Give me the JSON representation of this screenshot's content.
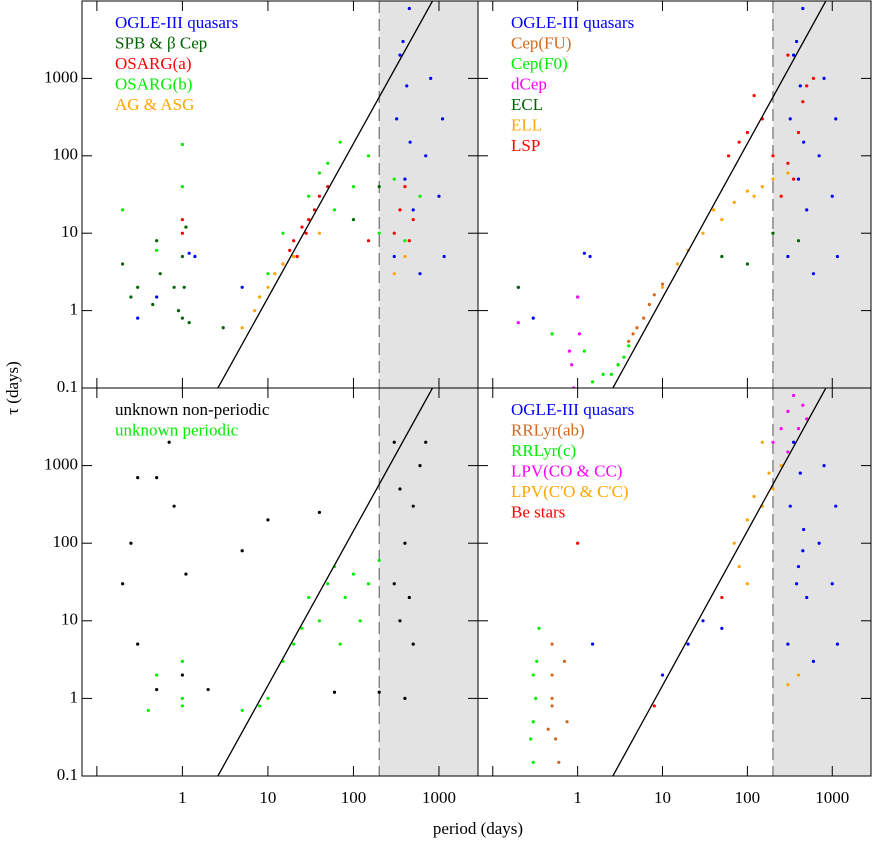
{
  "chart_data": [
    {
      "type": "scatter",
      "ylabel": "τ (days)",
      "xscale": "log",
      "yscale": "log",
      "xlim": [
        0.067,
        2860
      ],
      "ylim": [
        0.1,
        10000
      ],
      "xticks": [
        0.1,
        1,
        10,
        100,
        1000
      ],
      "yticks": [
        0.1,
        1,
        10,
        100,
        1000
      ],
      "shade_from": 200,
      "ref_line": {
        "x": [
          2.6,
          840
        ],
        "y": [
          0.1,
          10000
        ]
      },
      "series": [
        {
          "name": "OGLE-III quasars",
          "color": "#0000ff",
          "x": [
            300,
            320,
            350,
            400,
            420,
            450,
            500,
            600,
            700,
            800,
            1000,
            1100,
            1150,
            0.5,
            0.3,
            1.4,
            1.2,
            5,
            380,
            460
          ],
          "y": [
            5,
            300,
            2000,
            50,
            800,
            8000,
            20,
            3,
            100,
            1000,
            30,
            300,
            5,
            1.5,
            0.8,
            5,
            5.5,
            2,
            3000,
            150
          ]
        },
        {
          "name": "SPB & β Cep",
          "color": "#006400",
          "x": [
            0.2,
            0.25,
            0.3,
            0.45,
            0.5,
            0.55,
            0.8,
            0.9,
            1,
            1,
            1.1,
            1.05,
            1.2,
            3,
            200,
            100
          ],
          "y": [
            4,
            1.5,
            2,
            1.2,
            8,
            3,
            2,
            1,
            5,
            0.8,
            12,
            2,
            0.7,
            0.6,
            40,
            15
          ]
        },
        {
          "name": "OSARG(a)",
          "color": "#ff0000",
          "x": [
            15,
            18,
            20,
            25,
            30,
            35,
            40,
            50,
            22,
            28,
            300,
            350,
            400,
            450,
            500,
            1,
            1,
            150
          ],
          "y": [
            4,
            6,
            8,
            12,
            15,
            20,
            30,
            40,
            5,
            10,
            10,
            20,
            40,
            8,
            15,
            15,
            10,
            8
          ]
        },
        {
          "name": "OSARG(b)",
          "color": "#00ee00",
          "x": [
            10,
            15,
            20,
            30,
            50,
            70,
            100,
            40,
            60,
            150,
            200,
            300,
            400,
            600,
            1,
            1,
            0.2,
            0.5,
            8
          ],
          "y": [
            3,
            10,
            5,
            30,
            80,
            150,
            40,
            60,
            20,
            100,
            10,
            50,
            8,
            30,
            140,
            40,
            20,
            6,
            1.5
          ]
        },
        {
          "name": "AG & ASG",
          "color": "#ffa500",
          "x": [
            5,
            7,
            8,
            10,
            12,
            15,
            20,
            40,
            300,
            400
          ],
          "y": [
            0.6,
            1,
            1.5,
            2,
            3,
            4,
            5,
            10,
            3,
            5
          ]
        }
      ]
    },
    {
      "type": "scatter",
      "xscale": "log",
      "yscale": "log",
      "xlim": [
        0.067,
        2860
      ],
      "ylim": [
        0.1,
        10000
      ],
      "xticks": [
        0.1,
        1,
        10,
        100,
        1000
      ],
      "yticks": [
        0.1,
        1,
        10,
        100,
        1000
      ],
      "shade_from": 200,
      "ref_line": {
        "x": [
          2.6,
          840
        ],
        "y": [
          0.1,
          10000
        ]
      },
      "series": [
        {
          "name": "OGLE-III quasars",
          "color": "#0000ff",
          "x": [
            300,
            320,
            350,
            400,
            420,
            450,
            500,
            600,
            700,
            800,
            1000,
            1100,
            1150,
            0.2,
            0.3,
            1.4,
            1.2,
            380,
            460
          ],
          "y": [
            5,
            300,
            2000,
            50,
            800,
            8000,
            20,
            3,
            100,
            1000,
            30,
            300,
            5,
            2,
            0.8,
            5,
            5.5,
            3000,
            150
          ]
        },
        {
          "name": "Cep(FU)",
          "color": "#d2691e",
          "x": [
            3,
            4,
            5,
            6,
            7,
            8,
            10,
            4.5
          ],
          "y": [
            0.2,
            0.4,
            0.6,
            0.8,
            1.2,
            1.6,
            2.2,
            0.5
          ]
        },
        {
          "name": "Cep(F0)",
          "color": "#00ee00",
          "x": [
            2.5,
            3,
            2,
            1.5,
            1.2,
            1,
            0.5,
            3.5,
            4
          ],
          "y": [
            0.15,
            0.2,
            0.15,
            0.12,
            0.3,
            1.5,
            0.5,
            0.25,
            0.35
          ]
        },
        {
          "name": "dCep",
          "color": "#ff00ff",
          "x": [
            0.2,
            0.8,
            1,
            0.9,
            1.05,
            0.85
          ],
          "y": [
            0.7,
            0.3,
            1.5,
            0.1,
            0.5,
            0.2
          ]
        },
        {
          "name": "ECL",
          "color": "#006400",
          "x": [
            0.2,
            50,
            100,
            200,
            400
          ],
          "y": [
            2,
            5,
            4,
            10,
            8
          ]
        },
        {
          "name": "ELL",
          "color": "#ffa500",
          "x": [
            10,
            15,
            20,
            30,
            50,
            70,
            100,
            150,
            200,
            300,
            40,
            120
          ],
          "y": [
            2,
            4,
            6,
            10,
            15,
            25,
            35,
            40,
            50,
            60,
            20,
            30
          ]
        },
        {
          "name": "LSP",
          "color": "#ff0000",
          "x": [
            100,
            150,
            200,
            300,
            400,
            450,
            500,
            350,
            250,
            60,
            80,
            120,
            600,
            300
          ],
          "y": [
            200,
            300,
            100,
            80,
            200,
            500,
            800,
            50,
            30,
            100,
            150,
            600,
            1000,
            2000
          ]
        }
      ]
    },
    {
      "type": "scatter",
      "xlabel": "period (days)",
      "xscale": "log",
      "yscale": "log",
      "xlim": [
        0.067,
        2860
      ],
      "ylim": [
        0.1,
        10000
      ],
      "xticks": [
        0.1,
        1,
        10,
        100,
        1000
      ],
      "yticks": [
        0.1,
        1,
        10,
        100,
        1000
      ],
      "shade_from": 200,
      "ref_line": {
        "x": [
          2.6,
          840
        ],
        "y": [
          0.1,
          10000
        ]
      },
      "series": [
        {
          "name": "unknown non-periodic",
          "color": "#000000",
          "x": [
            0.2,
            0.3,
            0.25,
            0.5,
            0.7,
            0.8,
            1.1,
            0.3,
            0.5,
            1,
            2,
            5,
            10,
            40,
            60,
            300,
            350,
            400,
            450,
            500,
            600,
            700,
            300,
            400,
            500,
            350,
            200
          ],
          "y": [
            30,
            700,
            100,
            700,
            2000,
            300,
            40,
            5,
            1.3,
            2,
            1.3,
            80,
            200,
            250,
            1.2,
            2000,
            500,
            100,
            20,
            5,
            1000,
            2000,
            30,
            1,
            300,
            10,
            1.2
          ]
        },
        {
          "name": "unknown periodic",
          "color": "#00ee00",
          "x": [
            0.4,
            0.5,
            1,
            1,
            1,
            10,
            20,
            30,
            40,
            50,
            60,
            80,
            100,
            120,
            150,
            200,
            15,
            25,
            70,
            8,
            5
          ],
          "y": [
            0.7,
            2,
            1,
            0.8,
            3,
            1,
            5,
            20,
            10,
            30,
            50,
            20,
            40,
            10,
            30,
            60,
            3,
            8,
            5,
            0.8,
            0.7
          ]
        }
      ]
    },
    {
      "type": "scatter",
      "xscale": "log",
      "yscale": "log",
      "xlim": [
        0.067,
        2860
      ],
      "ylim": [
        0.1,
        10000
      ],
      "xticks": [
        0.1,
        1,
        10,
        100,
        1000
      ],
      "yticks": [
        0.1,
        1,
        10,
        100,
        1000
      ],
      "shade_from": 200,
      "ref_line": {
        "x": [
          2.6,
          840
        ],
        "y": [
          0.1,
          10000
        ]
      },
      "series": [
        {
          "name": "OGLE-III quasars",
          "color": "#0000ff",
          "x": [
            300,
            320,
            350,
            400,
            420,
            450,
            500,
            600,
            700,
            800,
            1000,
            1100,
            1150,
            10,
            20,
            30,
            50,
            1.5,
            380,
            460
          ],
          "y": [
            5,
            300,
            2000,
            50,
            800,
            80,
            20,
            3,
            100,
            1000,
            30,
            300,
            5,
            2,
            5,
            10,
            8,
            5,
            30,
            150
          ]
        },
        {
          "name": "RRLyr(ab)",
          "color": "#d2691e",
          "x": [
            0.5,
            0.5,
            0.5,
            0.5,
            0.55,
            0.6,
            0.45,
            0.7,
            0.75
          ],
          "y": [
            0.8,
            2,
            5,
            1,
            0.3,
            0.15,
            0.4,
            3,
            0.5
          ]
        },
        {
          "name": "RRLyr(c)",
          "color": "#00ee00",
          "x": [
            0.3,
            0.3,
            0.3,
            0.35,
            0.32,
            0.28,
            0.33
          ],
          "y": [
            0.15,
            0.5,
            2,
            8,
            1,
            0.3,
            3
          ]
        },
        {
          "name": "LPV(CO & CC)",
          "color": "#ff00ff",
          "x": [
            200,
            250,
            300,
            350,
            400,
            300,
            450,
            500
          ],
          "y": [
            2000,
            3000,
            5000,
            8000,
            3000,
            1500,
            6000,
            4000
          ]
        },
        {
          "name": "LPV(C'O & C'C)",
          "color": "#ffa500",
          "x": [
            70,
            100,
            120,
            150,
            180,
            200,
            250,
            100,
            300,
            80,
            150,
            400
          ],
          "y": [
            100,
            200,
            400,
            300,
            800,
            500,
            1000,
            30,
            1.5,
            50,
            2000,
            2
          ]
        },
        {
          "name": "Be stars",
          "color": "#ff0000",
          "x": [
            1,
            8,
            50
          ],
          "y": [
            100,
            0.8,
            20
          ]
        }
      ]
    }
  ]
}
